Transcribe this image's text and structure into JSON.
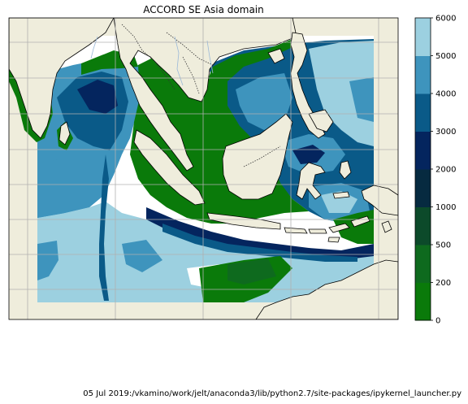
{
  "title": "ACCORD SE Asia domain",
  "footer": "05 Jul 2019:/vkamino/work/jelt/anaconda3/lib/python2.7/site-packages/ipykernel_launcher.py",
  "colorbar": {
    "levels": [
      0,
      200,
      500,
      1000,
      2000,
      3000,
      4000,
      5000,
      6000
    ],
    "labels": [
      "0",
      "200",
      "500",
      "1000",
      "2000",
      "3000",
      "4000",
      "5000",
      "6000"
    ],
    "colors": [
      "#0a7a0a",
      "#0e6a1e",
      "#0c4a2a",
      "#062a40",
      "#04255e",
      "#0a5a88",
      "#3e94bd",
      "#9cd0e0"
    ]
  },
  "map_colors": {
    "land": "#efeddc",
    "white_gaps": "#ffffff",
    "grid": "#b0b0b0",
    "border": "#333333"
  }
}
